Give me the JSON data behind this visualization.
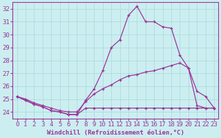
{
  "xlabel": "Windchill (Refroidissement éolien,°C)",
  "bg_color": "#cceef0",
  "line_color": "#993399",
  "grid_color": "#aadddd",
  "xlim": [
    -0.5,
    23.5
  ],
  "ylim": [
    23.5,
    32.5
  ],
  "yticks": [
    24,
    25,
    26,
    27,
    28,
    29,
    30,
    31,
    32
  ],
  "xticks": [
    0,
    1,
    2,
    3,
    4,
    5,
    6,
    7,
    8,
    9,
    10,
    11,
    12,
    13,
    14,
    15,
    16,
    17,
    18,
    19,
    20,
    21,
    22,
    23
  ],
  "line1_x": [
    0,
    1,
    2,
    3,
    4,
    5,
    6,
    7,
    8,
    9,
    10,
    11,
    12,
    13,
    14,
    15,
    16,
    17,
    18,
    19,
    20,
    21,
    22,
    23
  ],
  "line1_y": [
    25.2,
    24.9,
    24.6,
    24.4,
    24.1,
    24.0,
    23.8,
    23.8,
    24.9,
    25.8,
    27.2,
    29.0,
    29.6,
    31.5,
    32.2,
    31.0,
    31.0,
    30.6,
    30.5,
    28.4,
    27.4,
    24.5,
    24.3,
    24.3
  ],
  "line2_x": [
    0,
    1,
    2,
    3,
    4,
    5,
    6,
    7,
    8,
    9,
    10,
    11,
    12,
    13,
    14,
    15,
    16,
    17,
    18,
    19,
    20,
    21,
    22,
    23
  ],
  "line2_y": [
    25.2,
    25.0,
    24.7,
    24.5,
    24.3,
    24.1,
    24.0,
    24.0,
    24.8,
    25.4,
    25.8,
    26.1,
    26.5,
    26.8,
    26.9,
    27.1,
    27.2,
    27.4,
    27.6,
    27.8,
    27.4,
    25.6,
    25.2,
    24.3
  ],
  "line3_x": [
    0,
    1,
    2,
    3,
    4,
    5,
    6,
    7,
    8,
    9,
    10,
    11,
    12,
    13,
    14,
    15,
    16,
    17,
    18,
    19,
    20,
    21,
    22,
    23
  ],
  "line3_y": [
    25.2,
    24.9,
    24.6,
    24.4,
    24.1,
    24.0,
    23.8,
    23.8,
    24.3,
    24.3,
    24.3,
    24.3,
    24.3,
    24.3,
    24.3,
    24.3,
    24.3,
    24.3,
    24.3,
    24.3,
    24.3,
    24.3,
    24.3,
    24.3
  ],
  "xlabel_fontsize": 6.5,
  "tick_fontsize": 6.5
}
